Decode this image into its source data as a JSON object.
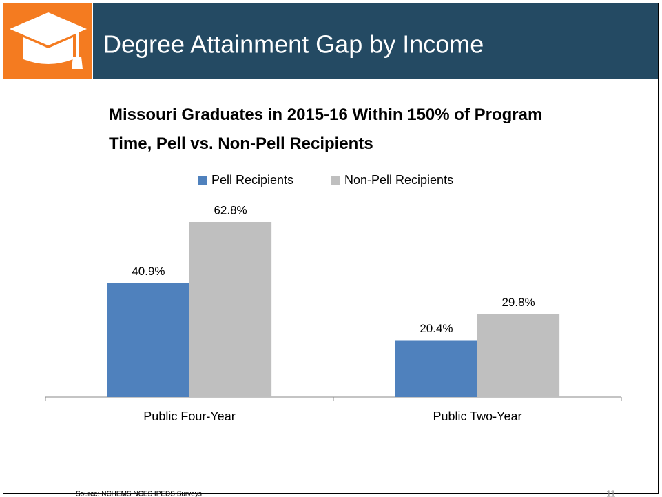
{
  "header": {
    "title": "Degree Attainment Gap by Income"
  },
  "chart_data": {
    "type": "bar",
    "title": "Missouri Graduates in 2015-16 Within 150% of Program Time, Pell vs. Non-Pell Recipients",
    "categories": [
      "Public Four-Year",
      "Public Two-Year"
    ],
    "series": [
      {
        "name": "Pell Recipients",
        "color": "#4f81bd",
        "values": [
          40.9,
          20.4
        ],
        "value_labels": [
          "40.9%",
          "20.4%"
        ]
      },
      {
        "name": "Non-Pell Recipients",
        "color": "#bfbfbf",
        "values": [
          62.8,
          29.8
        ],
        "value_labels": [
          "62.8%",
          "29.8%"
        ]
      }
    ],
    "legend": "top"
  },
  "source": "Source:  NCHEMS NCES IPEDS Surveys",
  "page_number": "11"
}
